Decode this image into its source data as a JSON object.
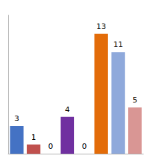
{
  "chart_data": {
    "type": "bar",
    "categories": [
      null,
      null,
      null,
      null,
      null,
      null,
      null,
      null
    ],
    "values": [
      3,
      1,
      0,
      4,
      0,
      13,
      11,
      5
    ],
    "colors": [
      "#4472C4",
      "#C0504D",
      "#808080",
      "#7030A0",
      "#808080",
      "#E36C09",
      "#8FA9DB",
      "#D99694"
    ],
    "ylim": [
      0,
      15
    ],
    "data_labels": true,
    "tick_labels": false,
    "grid": false
  }
}
